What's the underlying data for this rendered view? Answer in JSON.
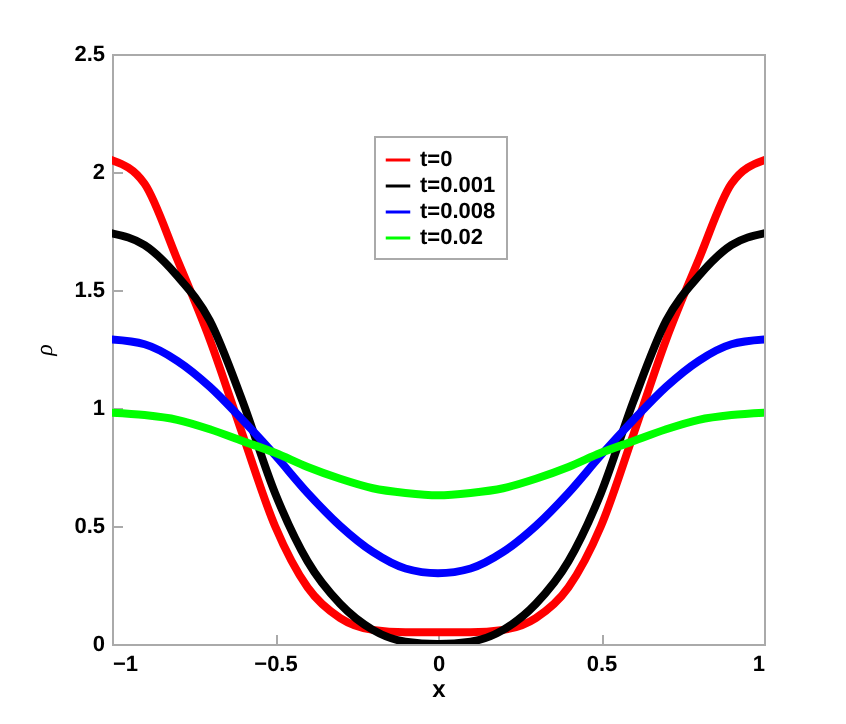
{
  "chart_data": {
    "type": "line",
    "xlabel": "x",
    "ylabel": "ρ",
    "x": [
      -1,
      -0.9,
      -0.8,
      -0.7,
      -0.6,
      -0.5,
      -0.4,
      -0.3,
      -0.2,
      -0.1,
      0,
      0.1,
      0.2,
      0.3,
      0.4,
      0.5,
      0.6,
      0.7,
      0.8,
      0.9,
      1
    ],
    "series": [
      {
        "name": "t=0",
        "color": "#ff0000",
        "values": [
          2.05,
          1.95,
          1.63,
          1.29,
          0.89,
          0.5,
          0.24,
          0.11,
          0.06,
          0.05,
          0.05,
          0.05,
          0.06,
          0.11,
          0.24,
          0.5,
          0.89,
          1.29,
          1.63,
          1.95,
          2.05
        ]
      },
      {
        "name": "t=0.001",
        "color": "#000000",
        "values": [
          1.74,
          1.69,
          1.56,
          1.37,
          1.03,
          0.64,
          0.35,
          0.17,
          0.06,
          0.01,
          0,
          0.01,
          0.06,
          0.17,
          0.35,
          0.64,
          1.03,
          1.37,
          1.56,
          1.69,
          1.74
        ]
      },
      {
        "name": "t=0.008",
        "color": "#0000ff",
        "values": [
          1.29,
          1.27,
          1.2,
          1.09,
          0.95,
          0.8,
          0.64,
          0.5,
          0.39,
          0.32,
          0.3,
          0.32,
          0.39,
          0.5,
          0.64,
          0.8,
          0.95,
          1.09,
          1.2,
          1.27,
          1.29
        ]
      },
      {
        "name": "t=0.02",
        "color": "#00ff00",
        "values": [
          0.98,
          0.97,
          0.95,
          0.91,
          0.86,
          0.81,
          0.75,
          0.7,
          0.66,
          0.64,
          0.63,
          0.64,
          0.66,
          0.7,
          0.75,
          0.81,
          0.86,
          0.91,
          0.95,
          0.97,
          0.98
        ]
      }
    ],
    "xlim": [
      -1,
      1
    ],
    "xticks": [
      -1,
      -0.5,
      0,
      0.5,
      1
    ],
    "ylim": [
      0,
      2.5
    ],
    "yticks": [
      0,
      0.5,
      1,
      1.5,
      2,
      2.5
    ],
    "grid": false,
    "legend": "top",
    "line_style": "solid"
  }
}
